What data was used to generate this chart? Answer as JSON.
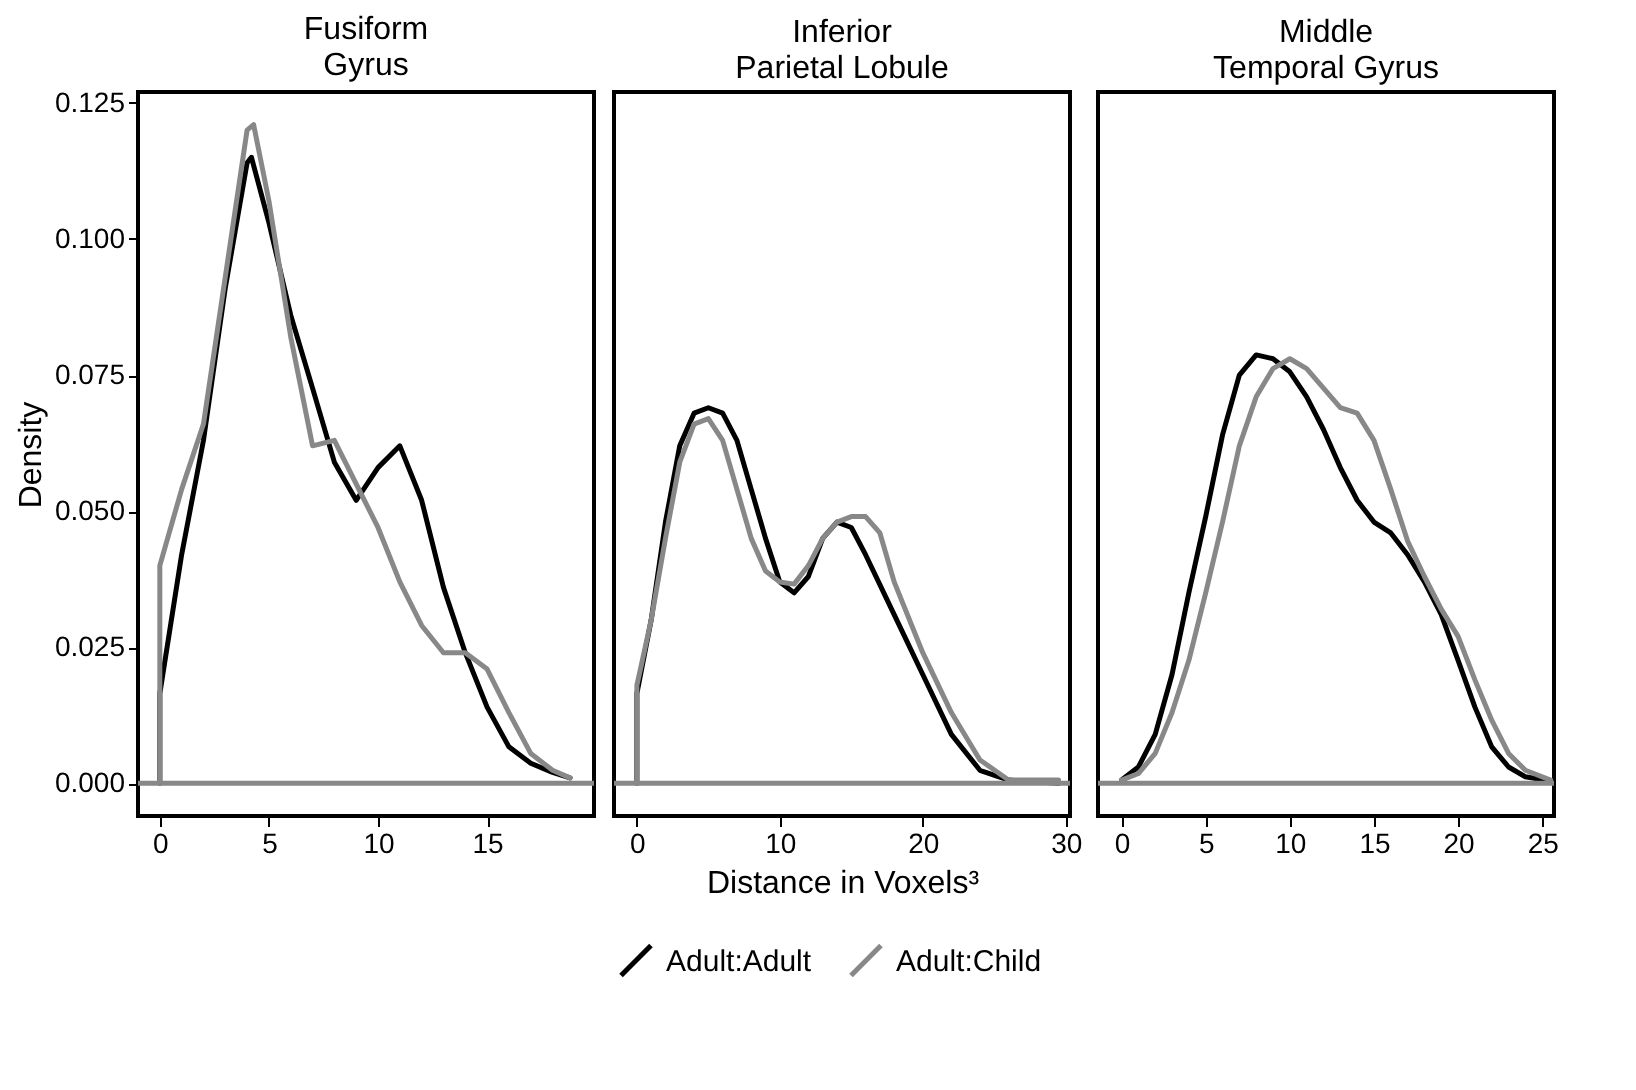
{
  "chart_data": [
    {
      "type": "line",
      "title": "Fusiform\nGyrus",
      "ylabel": "Density",
      "xlim": [
        -1,
        19.9
      ],
      "xticks": [
        0,
        5,
        10,
        15
      ],
      "ylim": [
        -0.006,
        0.127
      ],
      "yticks": [
        {
          "value": 0,
          "label": "0.000"
        },
        {
          "value": 0.025,
          "label": "0.025"
        },
        {
          "value": 0.05,
          "label": "0.050"
        },
        {
          "value": 0.075,
          "label": "0.075"
        },
        {
          "value": 0.1,
          "label": "0.100"
        },
        {
          "value": 0.125,
          "label": "0.125"
        }
      ],
      "grid": false,
      "line_style": "solid",
      "marker": "none",
      "ref_lines": [
        {
          "axis": "y",
          "value": 0,
          "color": "#888888"
        }
      ],
      "series": [
        {
          "color": "#000000",
          "x": [
            0,
            0,
            1,
            2,
            3,
            4,
            4.2,
            5,
            6,
            7,
            8,
            9,
            10,
            11,
            12,
            13,
            14,
            15,
            16,
            17,
            18,
            18.8
          ],
          "values": [
            0,
            0.0165,
            0.042,
            0.063,
            0.091,
            0.114,
            0.115,
            0.103,
            0.086,
            0.0726,
            0.059,
            0.052,
            0.058,
            0.062,
            0.052,
            0.036,
            0.024,
            0.014,
            0.0067,
            0.0037,
            0.002,
            0.001
          ]
        },
        {
          "color": "#888888",
          "x": [
            0,
            0,
            1,
            2,
            3,
            4,
            4.3,
            5,
            6,
            7,
            8,
            9,
            10,
            11,
            12,
            13,
            14,
            15,
            16,
            17,
            18,
            18.8
          ],
          "values": [
            0,
            0.04,
            0.054,
            0.066,
            0.093,
            0.12,
            0.121,
            0.107,
            0.082,
            0.062,
            0.063,
            0.055,
            0.047,
            0.037,
            0.029,
            0.024,
            0.024,
            0.021,
            0.013,
            0.0055,
            0.0024,
            0.001
          ]
        }
      ]
    },
    {
      "type": "line",
      "title": "Inferior\nParietal Lobule",
      "xlabel": "Distance in Voxels³",
      "xlim": [
        -1.6,
        30.3
      ],
      "xticks": [
        0,
        10,
        20,
        30
      ],
      "ylim": [
        -0.006,
        0.127
      ],
      "tick_labels": "x",
      "grid": false,
      "legend": "bottom",
      "line_style": "solid",
      "marker": "none",
      "ref_lines": [
        {
          "axis": "y",
          "value": 0,
          "color": "#888888"
        }
      ],
      "series": [
        {
          "name": "Adult:Adult",
          "color": "#000000",
          "x": [
            0,
            0,
            1,
            2,
            3,
            4,
            5,
            6,
            7,
            8,
            9,
            10,
            11,
            12,
            13,
            14,
            15,
            16,
            18,
            20,
            22,
            24,
            26,
            29.5
          ],
          "values": [
            0,
            0.0165,
            0.03,
            0.048,
            0.062,
            0.068,
            0.069,
            0.068,
            0.063,
            0.054,
            0.045,
            0.037,
            0.035,
            0.038,
            0.045,
            0.048,
            0.047,
            0.042,
            0.031,
            0.02,
            0.009,
            0.0024,
            0.0006,
            0
          ]
        },
        {
          "name": "Adult:Child",
          "color": "#888888",
          "x": [
            0,
            0,
            1,
            2,
            3,
            4,
            5,
            6,
            7,
            8,
            9,
            10,
            11,
            12,
            13,
            14,
            15,
            16,
            17,
            18,
            20,
            22,
            24,
            26,
            29.5
          ],
          "values": [
            0,
            0.018,
            0.03,
            0.045,
            0.059,
            0.066,
            0.067,
            0.063,
            0.054,
            0.045,
            0.039,
            0.037,
            0.0366,
            0.04,
            0.045,
            0.048,
            0.049,
            0.049,
            0.046,
            0.037,
            0.024,
            0.013,
            0.0043,
            0.0006,
            0.0006
          ]
        }
      ]
    },
    {
      "type": "line",
      "title": "Middle\nTemporal Gyrus",
      "xlim": [
        -1.4,
        25.7
      ],
      "xticks": [
        0,
        5,
        10,
        15,
        20,
        25
      ],
      "ylim": [
        -0.006,
        0.127
      ],
      "tick_labels": "x",
      "grid": false,
      "line_style": "solid",
      "marker": "none",
      "ref_lines": [
        {
          "axis": "y",
          "value": 0,
          "color": "#888888"
        }
      ],
      "series": [
        {
          "color": "#000000",
          "x": [
            0,
            1,
            2,
            3,
            4,
            5,
            6,
            7,
            8,
            9,
            10,
            11,
            12,
            13,
            14,
            15,
            16,
            17,
            18,
            19,
            20,
            21,
            22,
            23,
            24,
            25.5
          ],
          "values": [
            0.0006,
            0.003,
            0.009,
            0.02,
            0.035,
            0.049,
            0.064,
            0.075,
            0.0787,
            0.078,
            0.0756,
            0.071,
            0.065,
            0.058,
            0.052,
            0.048,
            0.046,
            0.042,
            0.037,
            0.031,
            0.0226,
            0.014,
            0.0067,
            0.003,
            0.0012,
            0.0004
          ]
        },
        {
          "color": "#888888",
          "x": [
            0,
            1,
            2,
            3,
            4,
            5,
            6,
            7,
            8,
            9,
            10,
            11,
            12,
            13,
            14,
            15,
            16,
            17,
            18,
            19,
            20,
            21,
            22,
            23,
            24,
            25.5
          ],
          "values": [
            0.0006,
            0.0018,
            0.0055,
            0.013,
            0.0226,
            0.035,
            0.048,
            0.062,
            0.071,
            0.0762,
            0.078,
            0.0762,
            0.0726,
            0.069,
            0.068,
            0.063,
            0.054,
            0.0445,
            0.038,
            0.032,
            0.027,
            0.019,
            0.0116,
            0.0055,
            0.0024,
            0.0006
          ]
        }
      ]
    }
  ]
}
